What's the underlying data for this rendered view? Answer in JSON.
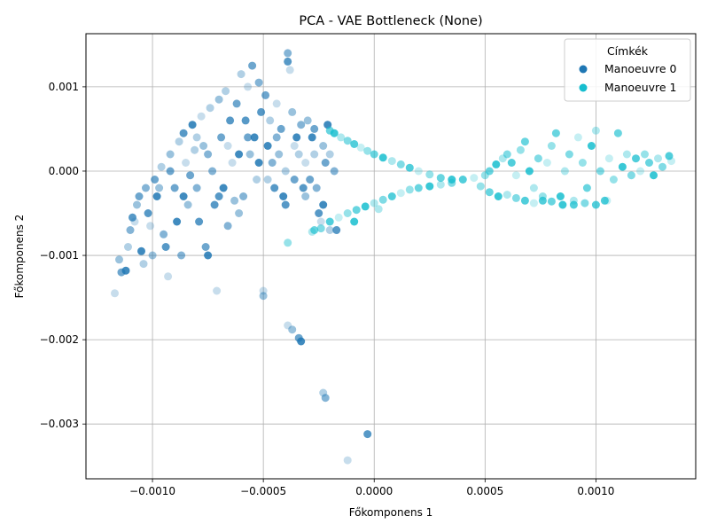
{
  "chart_data": {
    "type": "scatter",
    "title": "PCA - VAE Bottleneck (None)",
    "xlabel": "Főkomponens 1",
    "ylabel": "Főkomponens 2",
    "xlim": [
      -0.0013,
      0.00145
    ],
    "ylim": [
      -0.00365,
      0.00163
    ],
    "xticks": [
      -0.001,
      -0.0005,
      0.0,
      0.0005,
      0.001
    ],
    "xtick_labels": [
      "−0.0010",
      "−0.0005",
      "0.0000",
      "0.0005",
      "0.0010"
    ],
    "yticks": [
      0.001,
      0.0,
      -0.001,
      -0.002,
      -0.003
    ],
    "ytick_labels": [
      "0.001",
      "0.000",
      "−0.001",
      "−0.002",
      "−0.003"
    ],
    "grid": true,
    "legend": {
      "title": "Címkék",
      "placement": "top-right",
      "entries": [
        "Manoeuvre 0",
        "Manoeuvre 1"
      ]
    },
    "series": [
      {
        "name": "Manoeuvre 0",
        "color": "#1f77b4",
        "points": [
          [
            -0.00117,
            -0.00145
          ],
          [
            -0.00115,
            -0.00105
          ],
          [
            -0.00114,
            -0.0012
          ],
          [
            -0.00112,
            -0.00118
          ],
          [
            -0.00111,
            -0.0009
          ],
          [
            -0.0011,
            -0.0007
          ],
          [
            -0.00109,
            -0.00055
          ],
          [
            -0.00108,
            -0.0006
          ],
          [
            -0.00107,
            -0.0004
          ],
          [
            -0.00106,
            -0.0003
          ],
          [
            -0.00105,
            -0.00095
          ],
          [
            -0.00104,
            -0.0011
          ],
          [
            -0.00103,
            -0.0002
          ],
          [
            -0.00102,
            -0.0005
          ],
          [
            -0.00101,
            -0.00065
          ],
          [
            -0.001,
            -0.001
          ],
          [
            -0.00099,
            -0.0001
          ],
          [
            -0.00098,
            -0.0003
          ],
          [
            -0.00096,
            5e-05
          ],
          [
            -0.00095,
            -0.00075
          ],
          [
            -0.00094,
            -0.0009
          ],
          [
            -0.00093,
            -0.00125
          ],
          [
            -0.00092,
            0.0002
          ],
          [
            -0.0009,
            -0.0002
          ],
          [
            -0.00089,
            -0.0006
          ],
          [
            -0.00088,
            0.00035
          ],
          [
            -0.00087,
            -0.001
          ],
          [
            -0.00086,
            0.00045
          ],
          [
            -0.00085,
            0.0001
          ],
          [
            -0.00084,
            -0.0004
          ],
          [
            -0.00083,
            -5e-05
          ],
          [
            -0.00082,
            0.00055
          ],
          [
            -0.00081,
            0.00025
          ],
          [
            -0.0008,
            -0.0002
          ],
          [
            -0.00079,
            -0.0006
          ],
          [
            -0.00078,
            0.00065
          ],
          [
            -0.00077,
            0.0003
          ],
          [
            -0.00076,
            -0.0009
          ],
          [
            -0.00075,
            -0.001
          ],
          [
            -0.00074,
            0.00075
          ],
          [
            -0.00073,
            0.0
          ],
          [
            -0.00072,
            -0.0004
          ],
          [
            -0.00071,
            -0.00142
          ],
          [
            -0.0007,
            0.00085
          ],
          [
            -0.00069,
            0.0004
          ],
          [
            -0.00068,
            -0.0002
          ],
          [
            -0.00067,
            0.00095
          ],
          [
            -0.00066,
            -0.00065
          ],
          [
            -0.00065,
            0.0006
          ],
          [
            -0.00064,
            0.0001
          ],
          [
            -0.00063,
            -0.00035
          ],
          [
            -0.00062,
            0.0008
          ],
          [
            -0.00061,
            0.0002
          ],
          [
            -0.0006,
            0.00115
          ],
          [
            -0.00059,
            -0.0003
          ],
          [
            -0.00058,
            0.0006
          ],
          [
            -0.00057,
            0.001
          ],
          [
            -0.00056,
            0.0002
          ],
          [
            -0.00055,
            0.00125
          ],
          [
            -0.00054,
            0.0004
          ],
          [
            -0.00053,
            -0.0001
          ],
          [
            -0.00052,
            0.00105
          ],
          [
            -0.00051,
            0.0007
          ],
          [
            -0.0005,
            -0.00142
          ],
          [
            -0.0005,
            -0.00148
          ],
          [
            -0.00049,
            0.0009
          ],
          [
            -0.00048,
            0.0003
          ],
          [
            -0.00047,
            0.0006
          ],
          [
            -0.00046,
            0.0001
          ],
          [
            -0.00045,
            -0.0002
          ],
          [
            -0.00044,
            0.0008
          ],
          [
            -0.00043,
            0.0002
          ],
          [
            -0.00042,
            0.0005
          ],
          [
            -0.00041,
            -0.0003
          ],
          [
            -0.0004,
            0.0
          ],
          [
            -0.00039,
            0.0014
          ],
          [
            -0.00039,
            0.0013
          ],
          [
            -0.00038,
            0.0012
          ],
          [
            -0.00037,
            0.0007
          ],
          [
            -0.00036,
            -0.0001
          ],
          [
            -0.00035,
            0.0004
          ],
          [
            -0.00034,
            0.0002
          ],
          [
            -0.00033,
            0.00055
          ],
          [
            -0.00032,
            -0.0002
          ],
          [
            -0.00031,
            0.0001
          ],
          [
            -0.0003,
            0.0006
          ],
          [
            -0.00029,
            -0.0001
          ],
          [
            -0.00028,
            0.0004
          ],
          [
            -0.00027,
            0.0002
          ],
          [
            -0.00026,
            -0.0002
          ],
          [
            -0.00025,
            -0.0005
          ],
          [
            -0.00024,
            -0.0006
          ],
          [
            -0.00023,
            0.0003
          ],
          [
            -0.00022,
            0.0001
          ],
          [
            -0.00021,
            0.00055
          ],
          [
            -0.0002,
            -0.0007
          ],
          [
            -0.00018,
            0.0
          ],
          [
            -0.00017,
            -0.0007
          ],
          [
            -0.00039,
            -0.00183
          ],
          [
            -0.00037,
            -0.00188
          ],
          [
            -0.00034,
            -0.00198
          ],
          [
            -0.00033,
            -0.00202
          ],
          [
            -0.00023,
            -0.00263
          ],
          [
            -0.00022,
            -0.00269
          ],
          [
            -3e-05,
            -0.00312
          ],
          [
            -0.00012,
            -0.00343
          ],
          [
            -0.00097,
            -0.0002
          ],
          [
            -0.00092,
            0.0
          ],
          [
            -0.00086,
            -0.0003
          ],
          [
            -0.0008,
            0.0004
          ],
          [
            -0.00075,
            0.0002
          ],
          [
            -0.0007,
            -0.0003
          ],
          [
            -0.00066,
            0.0003
          ],
          [
            -0.00061,
            -0.0005
          ],
          [
            -0.00057,
            0.0004
          ],
          [
            -0.00052,
            0.0001
          ],
          [
            -0.00048,
            -0.0001
          ],
          [
            -0.00044,
            0.0004
          ],
          [
            -0.0004,
            -0.0004
          ],
          [
            -0.00036,
            0.0003
          ],
          [
            -0.00031,
            -0.0003
          ],
          [
            -0.00027,
            0.0005
          ],
          [
            -0.00023,
            -0.0004
          ],
          [
            -0.0002,
            0.0002
          ]
        ]
      },
      {
        "name": "Manoeuvre 1",
        "color": "#17becf",
        "points": [
          [
            -0.0002,
            0.00048
          ],
          [
            -0.00018,
            0.00045
          ],
          [
            -0.00015,
            0.0004
          ],
          [
            -0.00012,
            0.00036
          ],
          [
            -9e-05,
            0.00032
          ],
          [
            -6e-05,
            0.00028
          ],
          [
            -3e-05,
            0.00024
          ],
          [
            0.0,
            0.0002
          ],
          [
            4e-05,
            0.00016
          ],
          [
            8e-05,
            0.00012
          ],
          [
            0.00012,
            8e-05
          ],
          [
            0.00016,
            4e-05
          ],
          [
            0.0002,
            0.0
          ],
          [
            0.00025,
            -4e-05
          ],
          [
            0.0003,
            -8e-05
          ],
          [
            0.00035,
            -0.0001
          ],
          [
            -0.00028,
            -0.00072
          ],
          [
            -0.00024,
            -0.00068
          ],
          [
            -0.0002,
            -0.0006
          ],
          [
            -0.00016,
            -0.00055
          ],
          [
            -0.00012,
            -0.0005
          ],
          [
            -8e-05,
            -0.00046
          ],
          [
            -4e-05,
            -0.00042
          ],
          [
            0.0,
            -0.00038
          ],
          [
            4e-05,
            -0.00034
          ],
          [
            8e-05,
            -0.0003
          ],
          [
            0.00012,
            -0.00026
          ],
          [
            0.00016,
            -0.00022
          ],
          [
            0.0002,
            -0.0002
          ],
          [
            0.00025,
            -0.00018
          ],
          [
            0.0003,
            -0.00016
          ],
          [
            0.00035,
            -0.00014
          ],
          [
            0.0004,
            -0.0001
          ],
          [
            0.00045,
            -8e-05
          ],
          [
            0.0005,
            -5e-05
          ],
          [
            0.00052,
            0.0
          ],
          [
            0.00055,
            8e-05
          ],
          [
            0.00058,
            0.00015
          ],
          [
            0.0006,
            0.0002
          ],
          [
            0.00062,
            0.0001
          ],
          [
            0.00064,
            -5e-05
          ],
          [
            0.00066,
            0.00025
          ],
          [
            0.00068,
            0.00035
          ],
          [
            0.0007,
            0.0
          ],
          [
            0.00072,
            -0.0002
          ],
          [
            0.00074,
            0.00015
          ],
          [
            0.00076,
            -0.00035
          ],
          [
            0.00078,
            0.0001
          ],
          [
            0.0008,
            0.0003
          ],
          [
            0.00082,
            0.00045
          ],
          [
            0.00084,
            -0.0003
          ],
          [
            0.00086,
            0.0
          ],
          [
            0.00088,
            0.0002
          ],
          [
            0.0009,
            -0.0004
          ],
          [
            0.00092,
            0.0004
          ],
          [
            0.00094,
            0.0001
          ],
          [
            0.00096,
            -0.0002
          ],
          [
            0.00098,
            0.0003
          ],
          [
            0.001,
            0.00048
          ],
          [
            0.00102,
            0.0
          ],
          [
            0.00104,
            -0.00035
          ],
          [
            0.00106,
            0.00015
          ],
          [
            0.00108,
            -0.0001
          ],
          [
            0.0011,
            0.00045
          ],
          [
            0.00112,
            5e-05
          ],
          [
            0.00114,
            0.0002
          ],
          [
            0.00116,
            -5e-05
          ],
          [
            0.00118,
            0.00015
          ],
          [
            0.0012,
            0.0
          ],
          [
            0.00122,
            0.0002
          ],
          [
            0.00124,
            0.0001
          ],
          [
            0.00126,
            -5e-05
          ],
          [
            0.00128,
            0.00015
          ],
          [
            0.0013,
            5e-05
          ],
          [
            0.00133,
            0.00018
          ],
          [
            0.00134,
            0.00012
          ],
          [
            0.00048,
            -0.00018
          ],
          [
            0.00052,
            -0.00025
          ],
          [
            0.00056,
            -0.0003
          ],
          [
            0.0006,
            -0.00028
          ],
          [
            0.00064,
            -0.00032
          ],
          [
            0.00068,
            -0.00035
          ],
          [
            0.00072,
            -0.00038
          ],
          [
            0.00076,
            -0.0003
          ],
          [
            0.0008,
            -0.00036
          ],
          [
            0.00085,
            -0.0004
          ],
          [
            0.0009,
            -0.00035
          ],
          [
            0.00095,
            -0.00038
          ],
          [
            0.001,
            -0.0004
          ],
          [
            0.00105,
            -0.00035
          ],
          [
            -0.00039,
            -0.00085
          ],
          [
            -0.00027,
            -0.0007
          ],
          [
            -9e-05,
            -0.0006
          ],
          [
            2e-05,
            -0.00045
          ]
        ]
      }
    ]
  }
}
